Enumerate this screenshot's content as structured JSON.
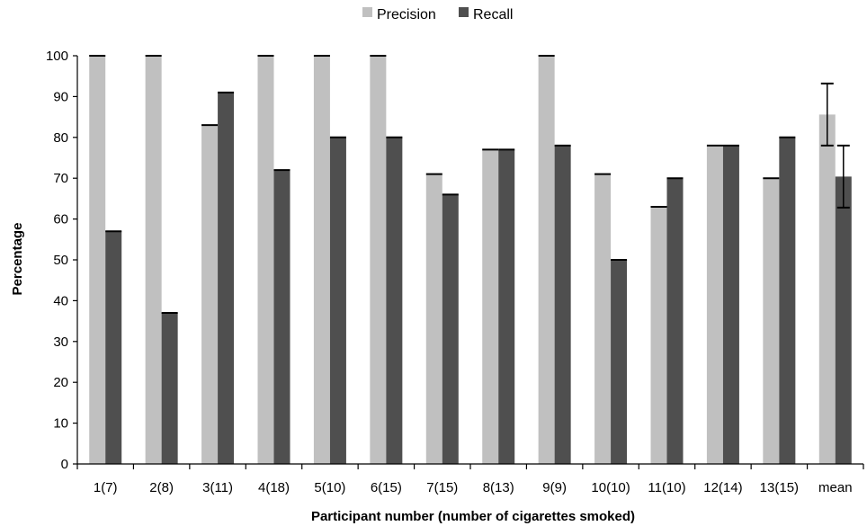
{
  "chart_data": {
    "type": "bar",
    "title": "",
    "xlabel": "Participant number (number of cigarettes smoked)",
    "ylabel": "Percentage",
    "ylim": [
      0,
      100
    ],
    "yticks": [
      0,
      10,
      20,
      30,
      40,
      50,
      60,
      70,
      80,
      90,
      100
    ],
    "grid": false,
    "legend_position": "top-center",
    "categories": [
      "1(7)",
      "2(8)",
      "3(11)",
      "4(18)",
      "5(10)",
      "6(15)",
      "7(15)",
      "8(13)",
      "9(9)",
      "10(10)",
      "11(10)",
      "12(14)",
      "13(15)",
      "mean"
    ],
    "series": [
      {
        "name": "Precision",
        "color": "#c0c0c0",
        "values": [
          100,
          100,
          83,
          100,
          100,
          100,
          71,
          77,
          100,
          71,
          63,
          78,
          70,
          85.6
        ],
        "error": [
          0,
          0,
          0,
          0,
          0,
          0,
          0,
          0,
          0,
          0,
          0,
          0,
          0,
          7.6
        ]
      },
      {
        "name": "Recall",
        "color": "#4f4f4f",
        "values": [
          57,
          37,
          91,
          72,
          80,
          80,
          66,
          77,
          78,
          50,
          70,
          78,
          80,
          70.4
        ],
        "error": [
          0,
          0,
          0,
          0,
          0,
          0,
          0,
          0,
          0,
          0,
          0,
          0,
          0,
          7.6
        ]
      }
    ]
  }
}
